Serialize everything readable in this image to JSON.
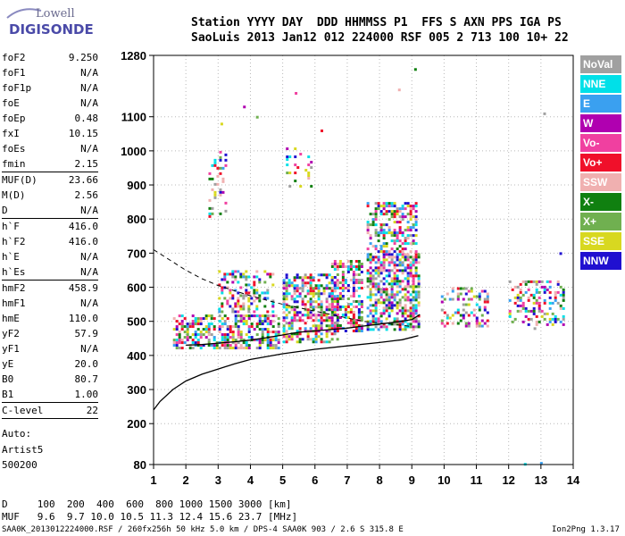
{
  "logo": {
    "line1": "Lowell",
    "line2": "DIGISONDE"
  },
  "header": {
    "row1": "Station YYYY DAY  DDD HHMMSS P1  FFS S AXN PPS IGA PS",
    "row2": "SaoLuis 2013 Jan12 012 224000 RSF 005 2 713 100 10+ 22"
  },
  "params": [
    {
      "name": "foF2",
      "value": "9.250"
    },
    {
      "name": "foF1",
      "value": "N/A"
    },
    {
      "name": "foF1p",
      "value": "N/A"
    },
    {
      "name": "foE",
      "value": "N/A"
    },
    {
      "name": "foEp",
      "value": "0.48"
    },
    {
      "name": "fxI",
      "value": "10.15"
    },
    {
      "name": "foEs",
      "value": "N/A"
    },
    {
      "name": "fmin",
      "value": "2.15"
    },
    {
      "name": "MUF(D)",
      "value": "23.66"
    },
    {
      "name": "M(D)",
      "value": "2.56"
    },
    {
      "name": "D",
      "value": "N/A"
    },
    {
      "name": "h`F",
      "value": "416.0"
    },
    {
      "name": "h`F2",
      "value": "416.0"
    },
    {
      "name": "h`E",
      "value": "N/A"
    },
    {
      "name": "h`Es",
      "value": "N/A"
    },
    {
      "name": "hmF2",
      "value": "458.9"
    },
    {
      "name": "hmF1",
      "value": "N/A"
    },
    {
      "name": "hmE",
      "value": "110.0"
    },
    {
      "name": "yF2",
      "value": "57.9"
    },
    {
      "name": "yF1",
      "value": "N/A"
    },
    {
      "name": "yE",
      "value": "20.0"
    },
    {
      "name": "B0",
      "value": "80.7"
    },
    {
      "name": "B1",
      "value": "1.00"
    },
    {
      "name": "C-level",
      "value": "22"
    }
  ],
  "auto": {
    "line1": "Auto:",
    "line2": "Artist5",
    "line3": "500200"
  },
  "footer": {
    "d_row": "D     100  200  400  600  800 1000 1500 3000 [km]",
    "muf_row": "MUF   9.6  9.7 10.0 10.5 11.3 12.4 15.6 23.7 [MHz]",
    "file_row": "SAA0K_2013012224000.RSF / 260fx256h 50 kHz 5.0 km / DPS-4 SAA0K 903 / 2.6 S 315.8 E",
    "version": "Ion2Png 1.3.17"
  },
  "legend": [
    {
      "label": "NoVal",
      "color": "#a0a0a0"
    },
    {
      "label": "NNE",
      "color": "#00e0e8"
    },
    {
      "label": "E",
      "color": "#3aa0f0"
    },
    {
      "label": "W",
      "color": "#b000b0"
    },
    {
      "label": "Vo-",
      "color": "#f040a0"
    },
    {
      "label": "Vo+",
      "color": "#f0102a"
    },
    {
      "label": "SSW",
      "color": "#f0b0b0"
    },
    {
      "label": "X-",
      "color": "#108010"
    },
    {
      "label": "X+",
      "color": "#70b050"
    },
    {
      "label": "SSE",
      "color": "#d8d820"
    },
    {
      "label": "NNW",
      "color": "#2010d0"
    }
  ],
  "chart_data": {
    "type": "scatter",
    "title": "",
    "xlabel": "",
    "ylabel": "",
    "xlim": [
      1,
      14
    ],
    "ylim": [
      80,
      1280
    ],
    "x_ticks": [
      1,
      2,
      3,
      4,
      5,
      6,
      7,
      8,
      9,
      10,
      11,
      12,
      13,
      14
    ],
    "y_ticks": [
      80,
      200,
      300,
      400,
      500,
      600,
      700,
      800,
      900,
      1000,
      1100,
      1280
    ],
    "grid": "dotted",
    "echo_blocks": [
      {
        "x0": 1.6,
        "x1": 5.0,
        "y0": 410,
        "y1": 520,
        "density": 0.55
      },
      {
        "x0": 2.7,
        "x1": 3.3,
        "y0": 800,
        "y1": 1000,
        "density": 0.25
      },
      {
        "x0": 3.0,
        "x1": 4.8,
        "y0": 520,
        "y1": 650,
        "density": 0.35
      },
      {
        "x0": 5.0,
        "x1": 6.8,
        "y0": 430,
        "y1": 640,
        "density": 0.55
      },
      {
        "x0": 5.1,
        "x1": 6.0,
        "y0": 890,
        "y1": 1010,
        "density": 0.2
      },
      {
        "x0": 6.5,
        "x1": 7.5,
        "y0": 460,
        "y1": 680,
        "density": 0.55
      },
      {
        "x0": 7.6,
        "x1": 9.3,
        "y0": 470,
        "y1": 700,
        "density": 0.6
      },
      {
        "x0": 7.6,
        "x1": 9.2,
        "y0": 700,
        "y1": 850,
        "density": 0.45
      },
      {
        "x0": 9.9,
        "x1": 11.4,
        "y0": 480,
        "y1": 600,
        "density": 0.35
      },
      {
        "x0": 12.0,
        "x1": 13.8,
        "y0": 480,
        "y1": 620,
        "density": 0.35
      }
    ],
    "profile_curve": {
      "x": [
        1.0,
        1.2,
        1.6,
        2.0,
        2.5,
        3.0,
        3.5,
        4.0,
        5.0,
        6.0,
        7.0,
        8.0,
        8.7,
        9.2
      ],
      "y": [
        240,
        265,
        300,
        325,
        345,
        360,
        375,
        388,
        405,
        418,
        428,
        438,
        446,
        458
      ]
    },
    "virtual_height_trace": {
      "x": [
        2.0,
        2.5,
        3.0,
        3.5,
        4.0,
        4.5,
        5.0,
        5.5,
        6.0,
        6.5,
        7.0,
        7.5,
        8.0,
        8.5,
        9.0,
        9.25
      ],
      "y": [
        430,
        432,
        436,
        440,
        445,
        452,
        460,
        468,
        472,
        476,
        480,
        486,
        492,
        498,
        505,
        520
      ]
    },
    "dashed_curve": {
      "x": [
        1.0,
        1.5,
        2.0,
        2.5,
        3.0,
        3.5,
        4.0,
        4.5,
        5.0,
        5.5,
        6.0,
        6.5,
        7.0,
        7.5,
        8.0,
        8.5,
        9.0
      ],
      "y": [
        710,
        680,
        650,
        625,
        605,
        590,
        575,
        562,
        550,
        540,
        530,
        520,
        510,
        500,
        495,
        490,
        485
      ]
    },
    "scattered_points": {
      "x": [
        13.1,
        12.5,
        13.0,
        3.8,
        5.4,
        6.2,
        8.6,
        9.1,
        4.2,
        3.1,
        13.6,
        12.8
      ],
      "y": [
        1110,
        82,
        85,
        1130,
        1170,
        1060,
        1180,
        1240,
        1100,
        1080,
        700,
        480
      ]
    }
  }
}
